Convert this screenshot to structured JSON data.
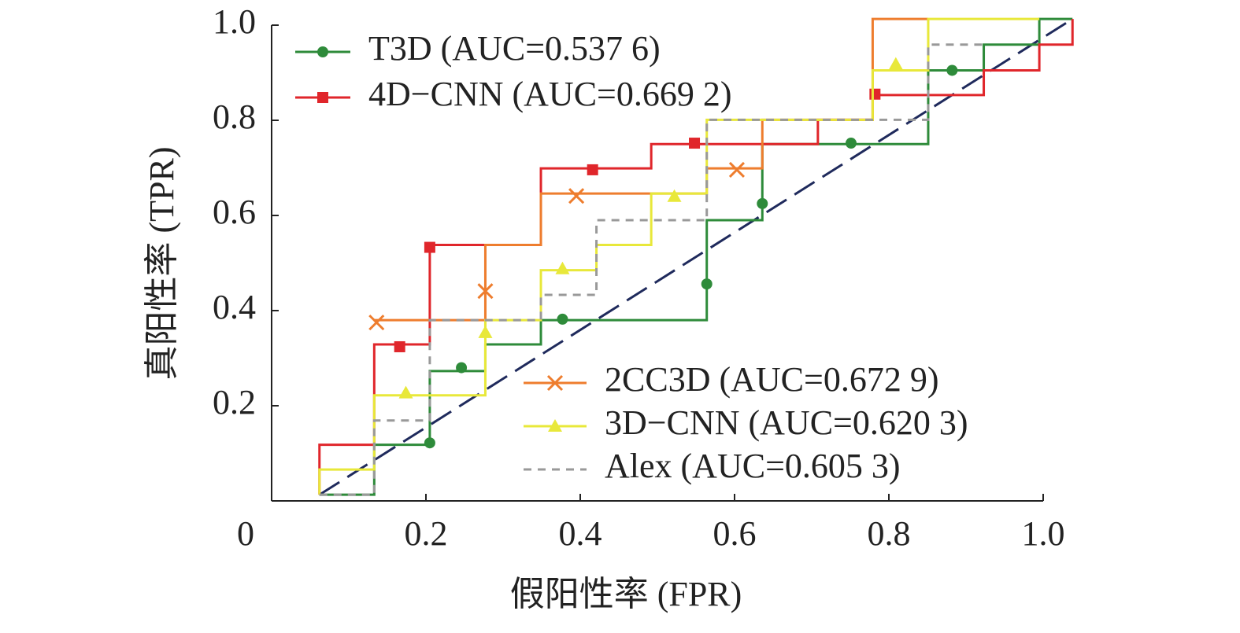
{
  "chart_data": {
    "type": "line",
    "xlabel": "假阳性率 (FPR)",
    "ylabel": "真阳性率 (TPR)",
    "xlim": [
      0,
      1
    ],
    "ylim": [
      0,
      1
    ],
    "xticks": [
      0,
      0.2,
      0.4,
      0.6,
      0.8,
      {
        "value": 1,
        "label": "1.0"
      }
    ],
    "yticks": [
      0.2,
      0.4,
      0.6,
      0.8,
      {
        "value": 1,
        "label": "1.0"
      }
    ],
    "series": [
      {
        "name": "T3D (AUC=0.537 6)",
        "color": "#2e8b3a",
        "marker": "circle",
        "dash": false,
        "x": [
          0.062,
          0.133,
          0.133,
          0.205,
          0.205,
          0.277,
          0.277,
          0.349,
          0.349,
          0.564,
          0.564,
          0.636,
          0.636,
          0.851,
          0.851,
          0.923,
          0.923,
          0.995,
          0.995,
          1.038
        ],
        "values": [
          0.013,
          0.013,
          0.118,
          0.118,
          0.273,
          0.273,
          0.329,
          0.329,
          0.38,
          0.38,
          0.59,
          0.59,
          0.75,
          0.75,
          0.905,
          0.905,
          0.959,
          0.959,
          1.013,
          1.013
        ],
        "marker_x": [
          0.205,
          0.246,
          0.377,
          0.564,
          0.636,
          0.751,
          0.882
        ],
        "marker_y": [
          0.122,
          0.28,
          0.382,
          0.456,
          0.625,
          0.752,
          0.905
        ]
      },
      {
        "name": "4D−CNN (AUC=0.669 2)",
        "color": "#e0262b",
        "marker": "square",
        "dash": false,
        "x": [
          0.062,
          0.062,
          0.133,
          0.133,
          0.205,
          0.205,
          0.349,
          0.349,
          0.492,
          0.492,
          0.708,
          0.708,
          0.779,
          0.779,
          0.923,
          0.923,
          0.995,
          0.995,
          1.038,
          1.038
        ],
        "values": [
          0.013,
          0.118,
          0.118,
          0.329,
          0.329,
          0.538,
          0.538,
          0.699,
          0.699,
          0.75,
          0.75,
          0.801,
          0.801,
          0.853,
          0.853,
          0.905,
          0.905,
          0.959,
          0.959,
          1.013
        ],
        "marker_x": [
          0.166,
          0.205,
          0.416,
          0.548,
          0.782
        ],
        "marker_y": [
          0.324,
          0.533,
          0.696,
          0.752,
          0.855
        ]
      },
      {
        "name": "2CC3D (AUC=0.672 9)",
        "color": "#ee7d2e",
        "marker": "cross",
        "dash": false,
        "x": [
          0.133,
          0.277,
          0.277,
          0.349,
          0.349,
          0.564,
          0.564,
          0.636,
          0.636,
          0.779,
          0.779,
          0.851
        ],
        "values": [
          0.38,
          0.38,
          0.538,
          0.538,
          0.646,
          0.646,
          0.699,
          0.699,
          0.801,
          0.801,
          1.013,
          1.013
        ],
        "marker_x": [
          0.136,
          0.277,
          0.395,
          0.603
        ],
        "marker_y": [
          0.375,
          0.441,
          0.641,
          0.696
        ]
      },
      {
        "name": "3D−CNN (AUC=0.620 3)",
        "color": "#e8e83a",
        "marker": "triangle",
        "dash": false,
        "x": [
          0.062,
          0.062,
          0.133,
          0.133,
          0.277,
          0.277,
          0.349,
          0.349,
          0.421,
          0.421,
          0.492,
          0.492,
          0.564,
          0.564,
          0.779,
          0.779,
          0.851,
          0.851,
          0.995
        ],
        "values": [
          0.013,
          0.066,
          0.066,
          0.222,
          0.222,
          0.38,
          0.38,
          0.485,
          0.485,
          0.538,
          0.538,
          0.646,
          0.646,
          0.801,
          0.801,
          0.905,
          0.905,
          1.013,
          1.013
        ],
        "marker_x": [
          0.174,
          0.277,
          0.377,
          0.522,
          0.809
        ],
        "marker_y": [
          0.227,
          0.354,
          0.488,
          0.64,
          0.918
        ]
      },
      {
        "name": "Alex (AUC=0.605 3)",
        "color": "#999999",
        "marker": "none",
        "dash": true,
        "x": [
          0.062,
          0.133,
          0.133,
          0.205,
          0.205,
          0.349,
          0.349,
          0.421,
          0.421,
          0.564,
          0.564,
          0.851,
          0.851,
          0.923
        ],
        "values": [
          0.013,
          0.013,
          0.169,
          0.169,
          0.38,
          0.38,
          0.433,
          0.433,
          0.59,
          0.59,
          0.801,
          0.801,
          0.959,
          0.959
        ],
        "marker_x": [],
        "marker_y": []
      }
    ],
    "reference_line": {
      "color": "#1f2a5c",
      "x": [
        0.062,
        1.038
      ],
      "values": [
        0.013,
        1.013
      ]
    }
  }
}
